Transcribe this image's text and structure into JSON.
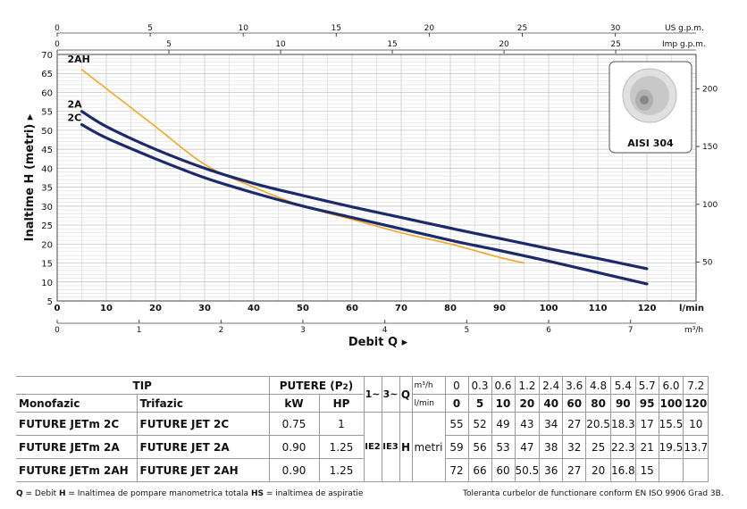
{
  "chart_data": {
    "type": "line",
    "ylabel": "Inaltime H (metri)",
    "xlabel": "Debit Q",
    "x_unit_bottom": "l/min",
    "x_unit_m3": "m³/h",
    "top_unit_us": "US g.p.m.",
    "top_unit_imp": "Imp g.p.m.",
    "xlim": [
      0,
      130
    ],
    "ylim": [
      5,
      70
    ],
    "x_ticks": [
      "0",
      "10",
      "20",
      "30",
      "40",
      "50",
      "60",
      "70",
      "80",
      "90",
      "100",
      "110",
      "120"
    ],
    "y_ticks": [
      "5",
      "10",
      "15",
      "20",
      "25",
      "30",
      "35",
      "40",
      "45",
      "50",
      "55",
      "60",
      "65",
      "70"
    ],
    "m3h_ticks": [
      "0",
      "1",
      "2",
      "3",
      "4",
      "5",
      "6",
      "7"
    ],
    "us_gpm_ticks": [
      "0",
      "5",
      "10",
      "15",
      "20",
      "25",
      "30"
    ],
    "imp_gpm_ticks": [
      "0",
      "5",
      "10",
      "15",
      "20",
      "25"
    ],
    "right_ticks": [
      "50",
      "100",
      "150",
      "200"
    ],
    "series": [
      {
        "name": "2AH",
        "color": "#f5a623",
        "x": [
          5,
          10,
          20,
          30,
          40,
          50,
          60,
          70,
          80,
          90,
          95
        ],
        "y": [
          66,
          61,
          51,
          41,
          35,
          30,
          26.5,
          23,
          20,
          16.5,
          15
        ]
      },
      {
        "name": "2A",
        "color": "#1b2a6b",
        "x": [
          5,
          10,
          20,
          30,
          40,
          50,
          60,
          70,
          80,
          90,
          100,
          110,
          120
        ],
        "y": [
          55,
          51,
          45,
          40,
          36,
          32.8,
          29.8,
          27,
          24.2,
          21.5,
          18.8,
          16.2,
          13.5
        ]
      },
      {
        "name": "2C",
        "color": "#1b2a6b",
        "x": [
          5,
          10,
          20,
          30,
          40,
          50,
          60,
          70,
          80,
          90,
          100,
          110,
          120
        ],
        "y": [
          51.5,
          48,
          42.5,
          37.5,
          33.5,
          30,
          27,
          24,
          21,
          18.3,
          15.5,
          12.5,
          9.5
        ]
      }
    ],
    "inset_label": "AISI 304"
  },
  "table": {
    "tip": "TIP",
    "putere": "PUTERE (P",
    "putere_sub": "2",
    "putere_close": ")",
    "monofazic": "Monofazic",
    "trifazic": "Trifazic",
    "kw": "kW",
    "hp": "HP",
    "phase1": "1~",
    "phase3": "3~",
    "q": "Q",
    "m3h_label": "m³/h",
    "lmin_label": "l/min",
    "m3h": [
      "0",
      "0.3",
      "0.6",
      "1.2",
      "2.4",
      "3.6",
      "4.8",
      "5.4",
      "5.7",
      "6.0",
      "7.2"
    ],
    "lmin": [
      "0",
      "5",
      "10",
      "20",
      "40",
      "60",
      "80",
      "90",
      "95",
      "100",
      "120"
    ],
    "h_label": "H",
    "metri": "metri",
    "ie2": "IE2",
    "ie3": "IE3",
    "rows": [
      {
        "mono": "FUTURE JETm 2C",
        "tri": "FUTURE JET 2C",
        "kw": "0.75",
        "hp": "1",
        "h": [
          "",
          "55",
          "52",
          "49",
          "43",
          "34",
          "27",
          "20.5",
          "18.3",
          "17",
          "15.5",
          "10"
        ]
      },
      {
        "mono": "FUTURE JETm 2A",
        "tri": "FUTURE JET 2A",
        "kw": "0.90",
        "hp": "1.25",
        "h": [
          "",
          "59",
          "56",
          "53",
          "47",
          "38",
          "32",
          "25",
          "22.3",
          "21",
          "19.5",
          "13.7"
        ]
      },
      {
        "mono": "FUTURE JETm 2AH",
        "tri": "FUTURE JET 2AH",
        "kw": "0.90",
        "hp": "1.25",
        "h": [
          "",
          "72",
          "66",
          "60",
          "50.5",
          "36",
          "27",
          "20",
          "16.8",
          "15",
          "",
          ""
        ]
      }
    ]
  },
  "footer": {
    "q": "Q",
    "q_text": " = Debit   ",
    "h": "H",
    "h_text": " = Inaltimea de pompare manometrica totala   ",
    "hs": "HS",
    "hs_text": " = inaltimea de aspiratie",
    "right": "Toleranta curbelor de functionare conform EN ISO 9906 Grad 3B."
  }
}
